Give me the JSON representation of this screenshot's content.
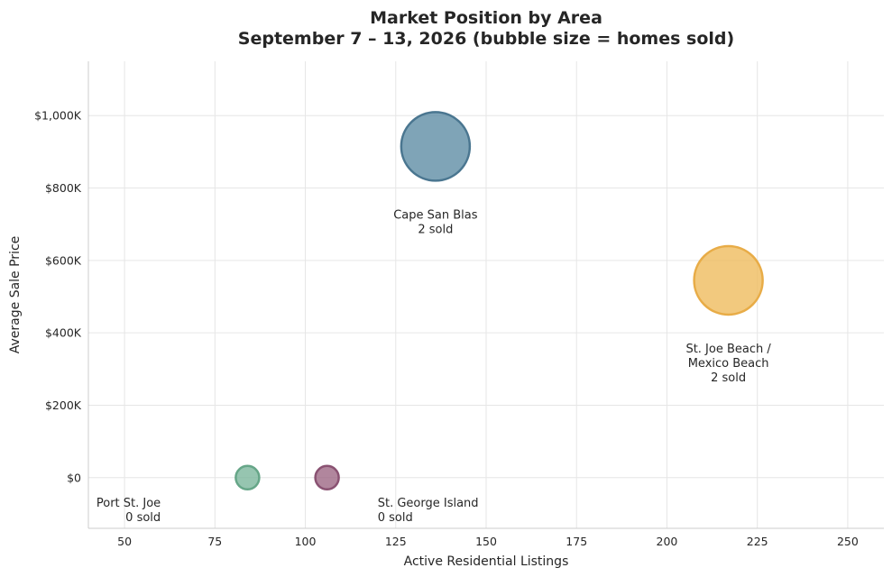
{
  "chart_data": {
    "type": "scatter",
    "title_lines": [
      "Market Position by Area",
      "September 7 – 13, 2026  (bubble size = homes sold)"
    ],
    "xlabel": "Active Residential Listings",
    "ylabel": "Average Sale Price",
    "xlim": [
      40,
      260
    ],
    "ylim": [
      -140000,
      1150000
    ],
    "x_ticks": [
      50,
      75,
      100,
      125,
      150,
      175,
      200,
      225,
      250
    ],
    "y_ticks": [
      0,
      200000,
      400000,
      600000,
      800000,
      1000000
    ],
    "y_tick_labels": [
      "$0",
      "$200K",
      "$400K",
      "$600K",
      "$800K",
      "$1,000K"
    ],
    "grid": true,
    "points": [
      {
        "id": "cape-san-blas",
        "label_lines": [
          "Cape San Blas",
          "2 sold"
        ],
        "x": 136,
        "y": 915000,
        "sold": 2,
        "color": "#5b8aa3",
        "edge": "#4a7690",
        "label_anchor": "middle",
        "label_x": 136,
        "label_y": 715000
      },
      {
        "id": "st-joe-beach",
        "label_lines": [
          "St. Joe Beach /",
          "Mexico Beach",
          "2 sold"
        ],
        "x": 217,
        "y": 545000,
        "sold": 2,
        "color": "#eeba5a",
        "edge": "#e8ac47",
        "label_anchor": "middle",
        "label_x": 217,
        "label_y": 345000
      },
      {
        "id": "port-st-joe",
        "label_lines": [
          "Port St. Joe",
          "0 sold"
        ],
        "x": 84,
        "y": 0,
        "sold": 0,
        "color": "#79b59a",
        "edge": "#66a688",
        "label_anchor": "end",
        "label_x": 60,
        "label_y": -80000
      },
      {
        "id": "st-george-island",
        "label_lines": [
          "St. George Island",
          "0 sold"
        ],
        "x": 106,
        "y": 0,
        "sold": 0,
        "color": "#9b6482",
        "edge": "#8a5272",
        "label_anchor": "start",
        "label_x": 120,
        "label_y": -80000
      }
    ]
  }
}
